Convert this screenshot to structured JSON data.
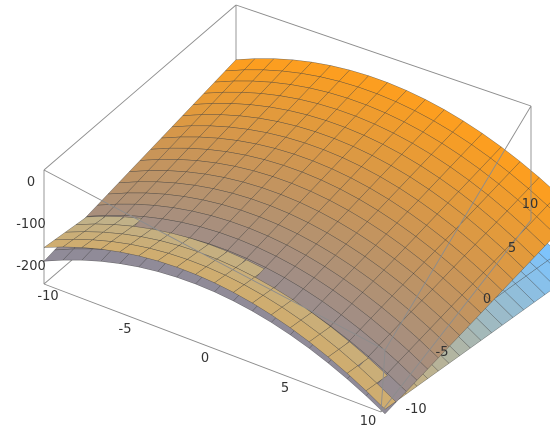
{
  "chart_data": {
    "type": "surface3d",
    "title": "",
    "xlabel": "",
    "ylabel": "",
    "zlabel": "",
    "xlim": [
      -10,
      10
    ],
    "ylim": [
      -10,
      10
    ],
    "zlim": [
      -230,
      20
    ],
    "x_ticks": [
      "-10",
      "-5",
      "0",
      "5",
      "10"
    ],
    "y_ticks": [
      "-10",
      "-5",
      "0",
      "5",
      "10"
    ],
    "z_ticks": [
      "0",
      "-100",
      "-200"
    ],
    "grid": false,
    "box": true,
    "surfaces": [
      {
        "equation": "z = -x^2 + 3x + 4y - 10",
        "samples_x": [
          -10,
          0,
          10
        ],
        "samples_y": [
          -10,
          0,
          10
        ],
        "z_at_samples": [
          [
            -180,
            -140,
            -100
          ],
          [
            -50,
            -10,
            30
          ],
          [
            -120,
            -80,
            -40
          ]
        ],
        "colors": {
          "low_y": "#4f7fe0",
          "high_y": "#ff9f1c"
        }
      },
      {
        "equation": "z = -x^2 + 2x - 3y - 60",
        "samples_x": [
          -10,
          0,
          10
        ],
        "samples_y": [
          -10,
          0,
          10
        ],
        "z_at_samples": [
          [
            -150,
            -180,
            -210
          ],
          [
            -30,
            -60,
            -90
          ],
          [
            -110,
            -140,
            -170
          ]
        ],
        "colors": {
          "low_y": "#ff9f1c",
          "high_y": "#7cc4ff"
        }
      }
    ]
  }
}
